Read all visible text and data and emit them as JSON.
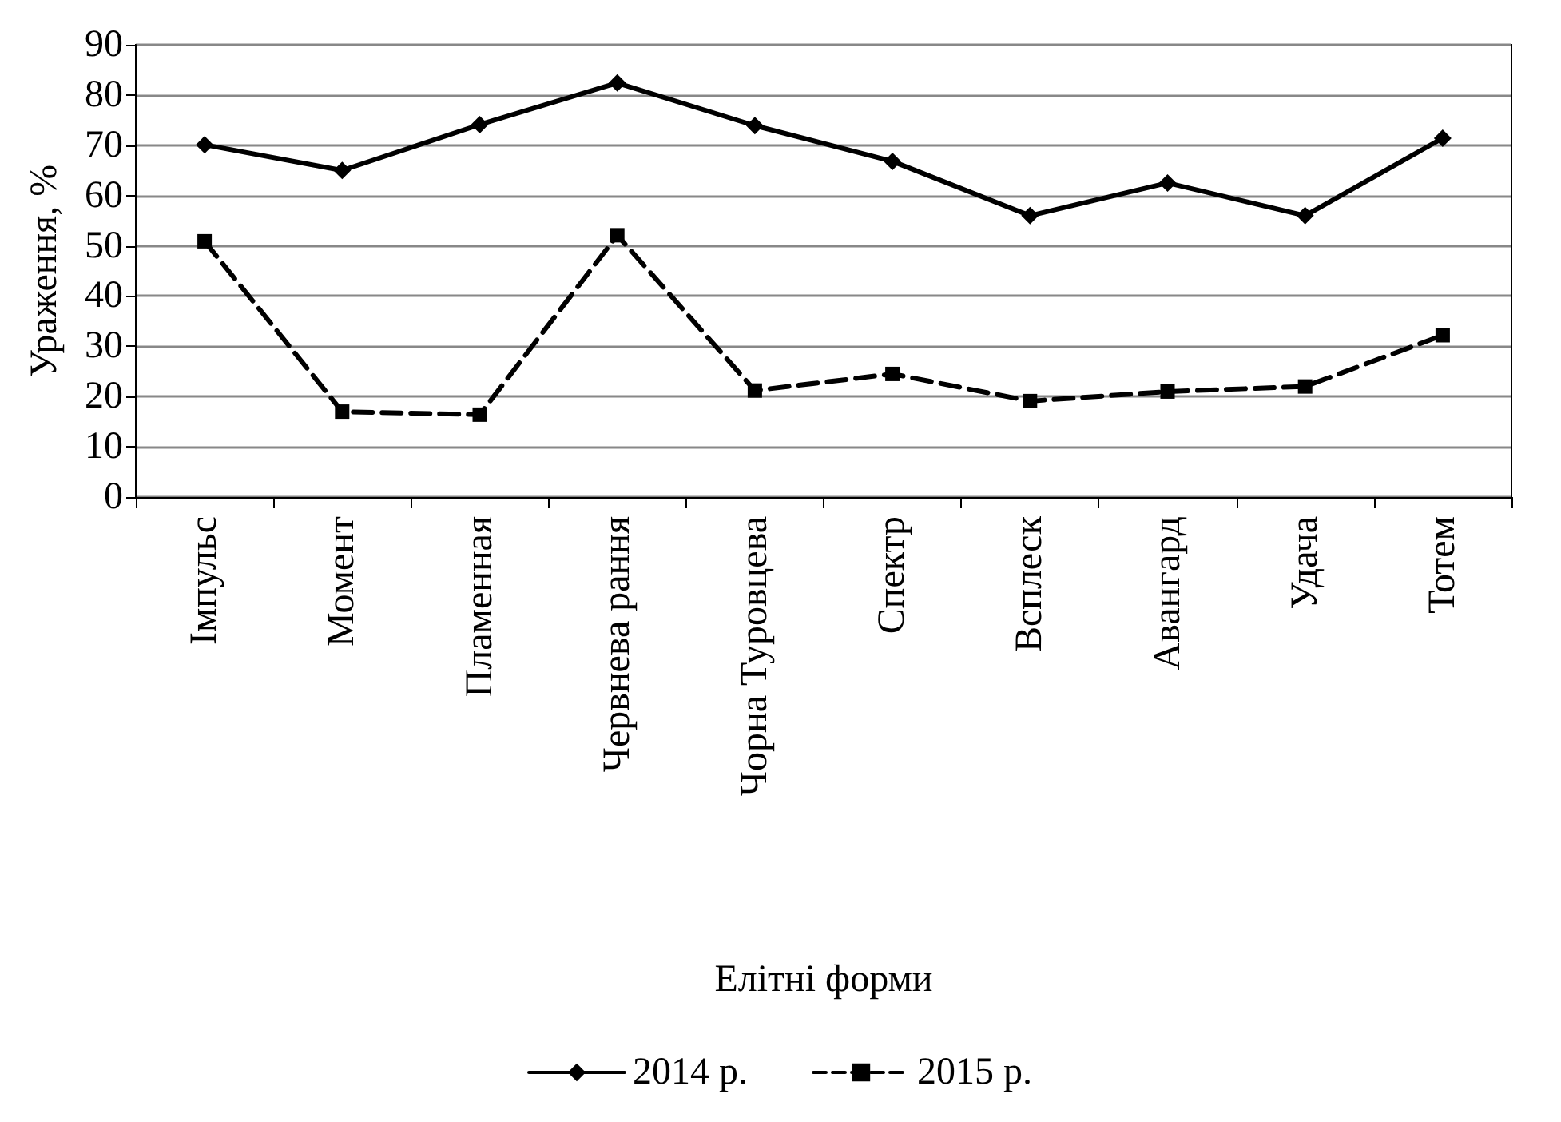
{
  "chart_data": {
    "type": "line",
    "xlabel": "Елітні форми",
    "ylabel": "Ураження, %",
    "categories": [
      "Імпульс",
      "Момент",
      "Пламенная",
      "Червнева рання",
      "Чорна Туровцева",
      "Спектр",
      "Всплеск",
      "Авангард",
      "Удача",
      "Тотем"
    ],
    "series": [
      {
        "name": "2014 р.",
        "color": "#000000",
        "marker": "diamond",
        "line_style": "solid",
        "values": [
          70.1,
          65,
          74.1,
          82.4,
          73.9,
          66.8,
          56,
          62.5,
          56,
          71.4
        ]
      },
      {
        "name": "2015 р.",
        "color": "#000000",
        "marker": "square",
        "line_style": "dashed",
        "values": [
          50.9,
          17,
          16.4,
          52.1,
          21.2,
          24.5,
          19.1,
          21,
          22,
          32.2
        ]
      }
    ],
    "ylim": [
      0,
      90
    ],
    "yticks": [
      0,
      10,
      20,
      30,
      40,
      50,
      60,
      70,
      80,
      90
    ],
    "grid": "y",
    "legend": "bottom"
  }
}
